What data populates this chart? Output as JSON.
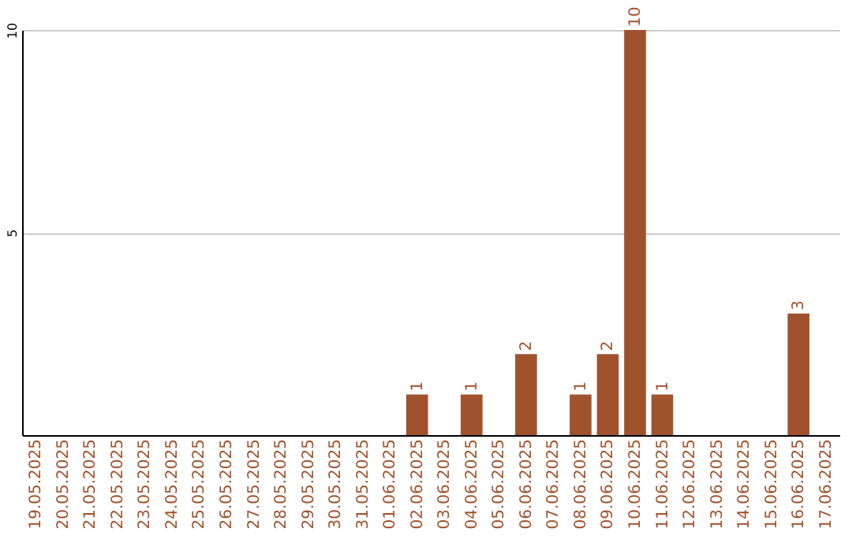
{
  "chart_data": {
    "type": "bar",
    "categories": [
      "19.05.2025",
      "20.05.2025",
      "21.05.2025",
      "22.05.2025",
      "23.05.2025",
      "24.05.2025",
      "25.05.2025",
      "26.05.2025",
      "27.05.2025",
      "28.05.2025",
      "29.05.2025",
      "30.05.2025",
      "31.05.2025",
      "01.06.2025",
      "02.06.2025",
      "03.06.2025",
      "04.06.2025",
      "05.06.2025",
      "06.06.2025",
      "07.06.2025",
      "08.06.2025",
      "09.06.2025",
      "10.06.2025",
      "11.06.2025",
      "12.06.2025",
      "13.06.2025",
      "14.06.2025",
      "15.06.2025",
      "16.06.2025",
      "17.06.2025"
    ],
    "values": [
      0,
      0,
      0,
      0,
      0,
      0,
      0,
      0,
      0,
      0,
      0,
      0,
      0,
      0,
      1,
      0,
      1,
      0,
      2,
      0,
      1,
      2,
      10,
      1,
      0,
      0,
      0,
      0,
      3,
      0
    ],
    "value_labels": [
      null,
      null,
      null,
      null,
      null,
      null,
      null,
      null,
      null,
      null,
      null,
      null,
      null,
      null,
      "1",
      null,
      "1",
      null,
      "2",
      null,
      "1",
      "2",
      "10",
      "1",
      null,
      null,
      null,
      null,
      "3",
      null
    ],
    "color": "#a0522d",
    "ylim": [
      0,
      10
    ],
    "yticks": [
      5,
      10
    ],
    "grid": "y"
  }
}
